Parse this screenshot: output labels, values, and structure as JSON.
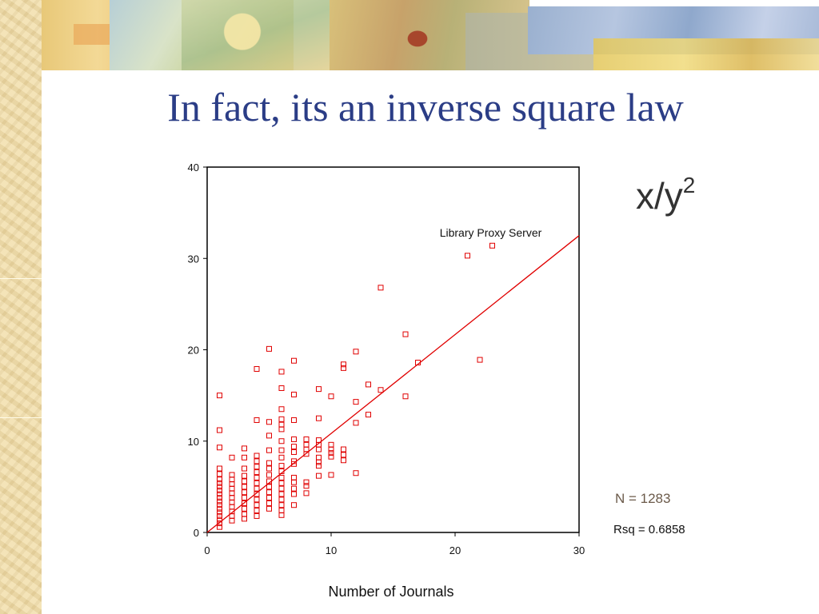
{
  "slide": {
    "title": "In fact, its an inverse square law",
    "formula_base": "x/y",
    "formula_exponent": "2"
  },
  "stats": {
    "n": "N = 1283",
    "rsq": "Rsq = 0.6858"
  },
  "chart_data": {
    "type": "scatter",
    "xlabel": "Number of Journals",
    "ylabel": "",
    "xlim": [
      0,
      30
    ],
    "ylim": [
      0,
      40
    ],
    "x_ticks": [
      0,
      10,
      20,
      30
    ],
    "y_ticks": [
      0,
      10,
      20,
      30,
      40
    ],
    "grid": false,
    "annotations": [
      {
        "text": "Library Proxy Server",
        "x": 23,
        "y": 31.5
      }
    ],
    "fit_line": {
      "x": [
        0,
        30
      ],
      "y": [
        0,
        32.5
      ]
    },
    "points": [
      [
        1,
        15
      ],
      [
        1,
        11.2
      ],
      [
        1,
        9.3
      ],
      [
        1,
        7
      ],
      [
        1,
        6.4
      ],
      [
        1,
        5.8
      ],
      [
        1,
        5.4
      ],
      [
        1,
        5
      ],
      [
        1,
        4.6
      ],
      [
        1,
        4.2
      ],
      [
        1,
        3.8
      ],
      [
        1,
        3.4
      ],
      [
        1,
        3
      ],
      [
        1,
        2.6
      ],
      [
        1,
        2.2
      ],
      [
        1,
        1.8
      ],
      [
        1,
        1.4
      ],
      [
        1,
        1
      ],
      [
        1,
        0.6
      ],
      [
        2,
        8.2
      ],
      [
        2,
        6.3
      ],
      [
        2,
        5.8
      ],
      [
        2,
        5.3
      ],
      [
        2,
        4.8
      ],
      [
        2,
        4.3
      ],
      [
        2,
        3.8
      ],
      [
        2,
        3.3
      ],
      [
        2,
        2.8
      ],
      [
        2,
        2.3
      ],
      [
        2,
        1.8
      ],
      [
        2,
        1.3
      ],
      [
        3,
        9.2
      ],
      [
        3,
        8.2
      ],
      [
        3,
        7
      ],
      [
        3,
        6.2
      ],
      [
        3,
        5.6
      ],
      [
        3,
        5
      ],
      [
        3,
        4.4
      ],
      [
        3,
        3.8
      ],
      [
        3,
        3.2
      ],
      [
        3,
        2.6
      ],
      [
        3,
        2
      ],
      [
        3,
        1.5
      ],
      [
        4,
        17.9
      ],
      [
        4,
        12.3
      ],
      [
        4,
        8.4
      ],
      [
        4,
        7.8
      ],
      [
        4,
        7.2
      ],
      [
        4,
        6.6
      ],
      [
        4,
        6
      ],
      [
        4,
        5.4
      ],
      [
        4,
        4.8
      ],
      [
        4,
        4.2
      ],
      [
        4,
        3.6
      ],
      [
        4,
        3
      ],
      [
        4,
        2.4
      ],
      [
        4,
        1.8
      ],
      [
        5,
        20.1
      ],
      [
        5,
        12.1
      ],
      [
        5,
        10.6
      ],
      [
        5,
        9
      ],
      [
        5,
        7.6
      ],
      [
        5,
        7
      ],
      [
        5,
        6.3
      ],
      [
        5,
        5.6
      ],
      [
        5,
        5
      ],
      [
        5,
        4.4
      ],
      [
        5,
        3.8
      ],
      [
        5,
        3.2
      ],
      [
        5,
        2.6
      ],
      [
        6,
        17.6
      ],
      [
        6,
        15.8
      ],
      [
        6,
        13.5
      ],
      [
        6,
        12.4
      ],
      [
        6,
        11.8
      ],
      [
        6,
        11.3
      ],
      [
        6,
        10
      ],
      [
        6,
        9
      ],
      [
        6,
        8.2
      ],
      [
        6,
        7.3
      ],
      [
        6,
        6.7
      ],
      [
        6,
        6
      ],
      [
        6,
        5.4
      ],
      [
        6,
        4.8
      ],
      [
        6,
        4.2
      ],
      [
        6,
        3.6
      ],
      [
        6,
        3
      ],
      [
        6,
        2.4
      ],
      [
        6,
        1.9
      ],
      [
        7,
        18.8
      ],
      [
        7,
        15.1
      ],
      [
        7,
        12.3
      ],
      [
        7,
        10.2
      ],
      [
        7,
        9.4
      ],
      [
        7,
        8.8
      ],
      [
        7,
        7.8
      ],
      [
        7,
        7.5
      ],
      [
        7,
        6
      ],
      [
        7,
        5.5
      ],
      [
        7,
        4.8
      ],
      [
        7,
        4.2
      ],
      [
        7,
        3
      ],
      [
        8,
        10.2
      ],
      [
        8,
        9.6
      ],
      [
        8,
        9.1
      ],
      [
        8,
        8.6
      ],
      [
        8,
        5.5
      ],
      [
        8,
        5.1
      ],
      [
        8,
        4.3
      ],
      [
        9,
        15.7
      ],
      [
        9,
        12.5
      ],
      [
        9,
        10.1
      ],
      [
        9,
        9.6
      ],
      [
        9,
        9.1
      ],
      [
        9,
        8.2
      ],
      [
        9,
        7.7
      ],
      [
        9,
        7.3
      ],
      [
        9,
        6.2
      ],
      [
        10,
        14.9
      ],
      [
        10,
        9.6
      ],
      [
        10,
        9.1
      ],
      [
        10,
        8.7
      ],
      [
        10,
        8.3
      ],
      [
        10,
        6.3
      ],
      [
        11,
        18.4
      ],
      [
        11,
        18
      ],
      [
        11,
        9.1
      ],
      [
        11,
        8.5
      ],
      [
        11,
        7.9
      ],
      [
        12,
        19.8
      ],
      [
        12,
        14.3
      ],
      [
        12,
        12
      ],
      [
        12,
        6.5
      ],
      [
        13,
        16.2
      ],
      [
        13,
        12.9
      ],
      [
        14,
        26.8
      ],
      [
        14,
        15.6
      ],
      [
        16,
        21.7
      ],
      [
        16,
        14.9
      ],
      [
        17,
        18.6
      ],
      [
        21,
        30.3
      ],
      [
        22,
        18.9
      ],
      [
        23,
        31.4
      ]
    ]
  }
}
